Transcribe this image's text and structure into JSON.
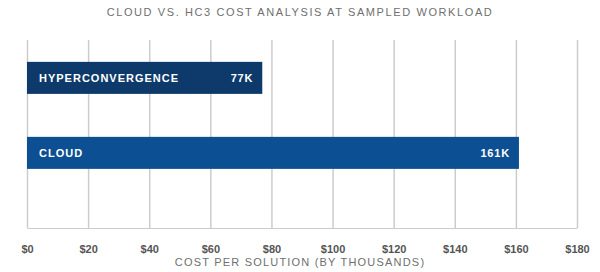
{
  "chart_data": {
    "type": "bar",
    "title": "CLOUD VS. HC3 COST ANALYSIS AT SAMPLED WORKLOAD",
    "orientation": "horizontal",
    "categories": [
      "HYPERCONVERGENCE",
      "CLOUD"
    ],
    "values": [
      77,
      161
    ],
    "value_labels": [
      "77K",
      "161K"
    ],
    "data_labels": true,
    "colors": [
      "#0d3a6b",
      "#0c4f92"
    ],
    "xlabel": "COST PER SOLUTION (BY THOUSANDS)",
    "xlim": [
      0,
      180
    ],
    "xticks": [
      {
        "value": 0,
        "label": "$0"
      },
      {
        "value": 20,
        "label": "$20"
      },
      {
        "value": 40,
        "label": "$40"
      },
      {
        "value": 60,
        "label": "$60"
      },
      {
        "value": 80,
        "label": "$80"
      },
      {
        "value": 100,
        "label": "$100"
      },
      {
        "value": 120,
        "label": "$120"
      },
      {
        "value": 140,
        "label": "$140"
      },
      {
        "value": 160,
        "label": "$160"
      },
      {
        "value": 180,
        "label": "$180"
      }
    ],
    "grid": true,
    "tick_labels": "x"
  }
}
